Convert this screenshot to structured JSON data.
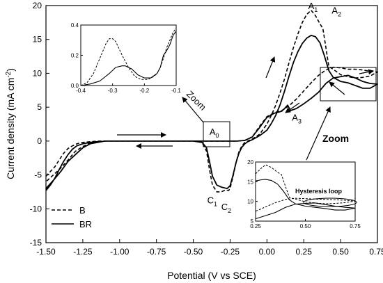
{
  "chart_data": [
    {
      "id": "main",
      "type": "line",
      "xlabel": "Potential (V vs SCE)",
      "ylabel_base": "Current density (mA cm",
      "ylabel_sup": "-2",
      "ylabel_end": ")",
      "xlim": [
        -1.5,
        0.75
      ],
      "ylim": [
        -15,
        20
      ],
      "x_ticks": [
        -1.5,
        -1.25,
        -1.0,
        -0.75,
        -0.5,
        -0.25,
        0.0,
        0.25,
        0.5,
        0.75
      ],
      "x_tick_labels": [
        "-1.50",
        "-1.25",
        "-1.00",
        "-0.75",
        "-0.50",
        "-0.25",
        "0.00",
        "0.25",
        "0.50",
        "0.75"
      ],
      "y_ticks": [
        -15,
        -10,
        -5,
        0,
        5,
        10,
        15,
        20
      ],
      "y_tick_labels": [
        "-15",
        "-10",
        "-5",
        "0",
        "5",
        "10",
        "15",
        "20"
      ],
      "grid": false,
      "legend_position": "bottom-left",
      "series": [
        {
          "name": "B",
          "style": "dashed",
          "x": [
            -1.5,
            -1.47,
            -1.44,
            -1.41,
            -1.38,
            -1.35,
            -1.32,
            -1.29,
            -1.25,
            -1.2,
            -1.15,
            -1.1,
            -1.0,
            -0.9,
            -0.8,
            -0.7,
            -0.6,
            -0.5,
            -0.44,
            -0.41,
            -0.39,
            -0.37,
            -0.34,
            -0.31,
            -0.28,
            -0.26,
            -0.25,
            -0.23,
            -0.21,
            -0.19,
            -0.17,
            -0.15,
            -0.13,
            -0.1,
            -0.05,
            0.0,
            0.03,
            0.06,
            0.09,
            0.12,
            0.15,
            0.18,
            0.21,
            0.24,
            0.27,
            0.3,
            0.33,
            0.36,
            0.38,
            0.4,
            0.42,
            0.45,
            0.5,
            0.55,
            0.6,
            0.65,
            0.7,
            0.75,
            0.7,
            0.65,
            0.6,
            0.55,
            0.5,
            0.45,
            0.4,
            0.35,
            0.3,
            0.25,
            0.2,
            0.15,
            0.1,
            0.05,
            0.0,
            -0.05,
            -0.1,
            -0.15,
            -0.2,
            -0.3,
            -0.4,
            -0.5,
            -0.7,
            -0.9,
            -1.1,
            -1.2,
            -1.25,
            -1.3,
            -1.35,
            -1.4,
            -1.45,
            -1.5
          ],
          "y": [
            -5.2,
            -4.5,
            -3.8,
            -2.8,
            -1.8,
            -1.1,
            -0.7,
            -0.4,
            -0.2,
            -0.1,
            0.0,
            0.0,
            0.0,
            0.0,
            0.0,
            0.0,
            0.0,
            0.0,
            -0.2,
            -1.5,
            -4.2,
            -6.5,
            -7.5,
            -7.5,
            -7.2,
            -7.3,
            -7.0,
            -5.2,
            -3.2,
            -1.6,
            -0.7,
            -0.2,
            0.0,
            0.3,
            1.0,
            2.5,
            3.8,
            5.3,
            7.2,
            9.2,
            11.6,
            13.8,
            15.8,
            17.5,
            18.7,
            19.3,
            18.5,
            17.3,
            16.6,
            13.8,
            11.0,
            10.6,
            9.8,
            9.5,
            9.3,
            9.4,
            9.6,
            10.2,
            10.3,
            10.5,
            10.6,
            10.6,
            10.8,
            10.9,
            10.5,
            9.7,
            8.6,
            7.4,
            6.2,
            5.2,
            4.5,
            4.2,
            3.6,
            2.2,
            0.6,
            0.1,
            0.0,
            0.0,
            0.0,
            0.0,
            0.0,
            0.0,
            0.0,
            -0.3,
            -0.8,
            -1.5,
            -2.8,
            -4.0,
            -5.0,
            -6.0
          ]
        },
        {
          "name": "BR",
          "style": "solid",
          "x": [
            -1.5,
            -1.47,
            -1.44,
            -1.41,
            -1.38,
            -1.35,
            -1.32,
            -1.29,
            -1.25,
            -1.2,
            -1.15,
            -1.1,
            -1.0,
            -0.9,
            -0.8,
            -0.7,
            -0.6,
            -0.5,
            -0.44,
            -0.41,
            -0.39,
            -0.37,
            -0.34,
            -0.31,
            -0.29,
            -0.27,
            -0.25,
            -0.23,
            -0.21,
            -0.19,
            -0.17,
            -0.15,
            -0.13,
            -0.1,
            -0.05,
            0.0,
            0.03,
            0.06,
            0.09,
            0.12,
            0.15,
            0.18,
            0.21,
            0.24,
            0.27,
            0.3,
            0.33,
            0.36,
            0.39,
            0.42,
            0.45,
            0.5,
            0.55,
            0.6,
            0.65,
            0.7,
            0.75,
            0.7,
            0.65,
            0.6,
            0.55,
            0.5,
            0.45,
            0.4,
            0.35,
            0.3,
            0.25,
            0.2,
            0.16,
            0.14,
            0.12,
            0.1,
            0.05,
            0.0,
            -0.05,
            -0.1,
            -0.15,
            -0.2,
            -0.3,
            -0.4,
            -0.5,
            -0.7,
            -0.9,
            -1.1,
            -1.2,
            -1.25,
            -1.3,
            -1.35,
            -1.4,
            -1.45,
            -1.5
          ],
          "y": [
            -7.3,
            -6.5,
            -5.5,
            -4.2,
            -3.0,
            -2.0,
            -1.2,
            -0.7,
            -0.4,
            -0.2,
            -0.1,
            0.0,
            0.0,
            0.0,
            0.0,
            0.0,
            0.0,
            0.0,
            -0.2,
            -1.0,
            -3.0,
            -5.2,
            -6.5,
            -6.8,
            -6.9,
            -7.0,
            -6.6,
            -5.0,
            -3.2,
            -1.8,
            -0.9,
            -0.4,
            -0.1,
            0.2,
            0.8,
            1.6,
            2.6,
            3.8,
            5.4,
            7.4,
            9.6,
            11.6,
            13.2,
            14.4,
            15.2,
            15.6,
            15.4,
            14.5,
            12.6,
            10.4,
            9.4,
            8.8,
            8.6,
            8.2,
            7.8,
            7.8,
            8.4,
            8.5,
            8.8,
            9.3,
            9.7,
            9.5,
            9.3,
            8.5,
            7.2,
            6.3,
            5.5,
            4.8,
            4.5,
            5.3,
            4.8,
            4.4,
            4.1,
            3.5,
            2.0,
            0.6,
            0.1,
            0.0,
            0.0,
            0.0,
            0.0,
            0.0,
            0.0,
            0.0,
            -0.4,
            -1.0,
            -2.0,
            -3.0,
            -4.5,
            -5.8,
            -7.0
          ]
        }
      ],
      "annotations": [
        {
          "main": "A",
          "sub": "1",
          "x": 0.28,
          "y": 19.5
        },
        {
          "main": "A",
          "sub": "2",
          "x": 0.44,
          "y": 18.8
        },
        {
          "main": "A",
          "sub": "3",
          "x": 0.17,
          "y": 3.0
        },
        {
          "main": "A",
          "sub": "0",
          "x": -0.39,
          "y": 0.9
        },
        {
          "main": "C",
          "sub": "1",
          "x": -0.405,
          "y": -9.2
        },
        {
          "main": "C",
          "sub": "2",
          "x": -0.31,
          "y": -10.2
        }
      ],
      "legend": [
        {
          "name": "B",
          "style": "dashed"
        },
        {
          "name": "BR",
          "style": "solid"
        }
      ],
      "zoom_label": "Zoom",
      "zoom_label_2": "Zoom"
    },
    {
      "id": "inset-top",
      "type": "line",
      "xlim": [
        -0.4,
        -0.1
      ],
      "ylim": [
        0.0,
        0.4
      ],
      "x_ticks": [
        -0.4,
        -0.3,
        -0.2,
        -0.1
      ],
      "x_tick_labels": [
        "-0.4",
        "-0.3",
        "-0.2",
        "-0.1"
      ],
      "y_ticks": [
        0.0,
        0.2,
        0.4
      ],
      "y_tick_labels": [
        "0.0",
        "0.2",
        "0.4"
      ],
      "series": [
        {
          "name": "B",
          "style": "dashed",
          "x": [
            -0.4,
            -0.38,
            -0.36,
            -0.34,
            -0.32,
            -0.31,
            -0.3,
            -0.29,
            -0.27,
            -0.25,
            -0.23,
            -0.21,
            -0.19,
            -0.17,
            -0.16,
            -0.15,
            -0.14,
            -0.13,
            -0.12,
            -0.11,
            -0.1
          ],
          "y": [
            0.0,
            0.02,
            0.08,
            0.18,
            0.28,
            0.31,
            0.31,
            0.29,
            0.2,
            0.12,
            0.06,
            0.04,
            0.04,
            0.06,
            0.08,
            0.12,
            0.18,
            0.25,
            0.3,
            0.35,
            0.38
          ]
        },
        {
          "name": "BR",
          "style": "solid",
          "x": [
            -0.4,
            -0.37,
            -0.34,
            -0.31,
            -0.29,
            -0.27,
            -0.26,
            -0.24,
            -0.22,
            -0.2,
            -0.18,
            -0.16,
            -0.15,
            -0.14,
            -0.13,
            -0.12,
            -0.11,
            -0.1
          ],
          "y": [
            0.0,
            0.01,
            0.03,
            0.08,
            0.12,
            0.13,
            0.13,
            0.11,
            0.07,
            0.05,
            0.05,
            0.08,
            0.12,
            0.2,
            0.23,
            0.27,
            0.33,
            0.36
          ]
        }
      ]
    },
    {
      "id": "inset-bottom",
      "type": "line",
      "xlim": [
        0.25,
        0.75
      ],
      "ylim": [
        5,
        20
      ],
      "x_ticks": [
        0.25,
        0.5,
        0.75
      ],
      "x_tick_labels": [
        "0.25",
        "0.50",
        "0.75"
      ],
      "y_ticks": [
        5,
        10,
        15,
        20
      ],
      "y_tick_labels": [
        "5",
        "10",
        "15",
        "20"
      ],
      "hysteresis_label": "Hysteresis loop",
      "series": [
        {
          "name": "B",
          "style": "dashed",
          "x": [
            0.25,
            0.28,
            0.3,
            0.33,
            0.36,
            0.38,
            0.4,
            0.42,
            0.45,
            0.5,
            0.55,
            0.6,
            0.65,
            0.7,
            0.75,
            0.7,
            0.65,
            0.6,
            0.55,
            0.5,
            0.45,
            0.4,
            0.35,
            0.3,
            0.25
          ],
          "y": [
            17.0,
            18.5,
            19.3,
            18.6,
            17.4,
            16.8,
            13.8,
            11.0,
            10.6,
            9.9,
            9.6,
            9.4,
            9.5,
            9.7,
            10.1,
            10.3,
            10.4,
            10.5,
            10.6,
            10.7,
            10.8,
            10.5,
            9.7,
            8.6,
            7.5
          ]
        },
        {
          "name": "BR",
          "style": "solid",
          "x": [
            0.25,
            0.28,
            0.3,
            0.33,
            0.36,
            0.39,
            0.42,
            0.45,
            0.5,
            0.55,
            0.6,
            0.65,
            0.7,
            0.75,
            0.7,
            0.65,
            0.6,
            0.55,
            0.5,
            0.45,
            0.4,
            0.35,
            0.3,
            0.25
          ],
          "y": [
            15.2,
            15.5,
            15.6,
            15.3,
            14.4,
            12.6,
            10.4,
            9.4,
            8.8,
            8.5,
            8.2,
            7.8,
            7.8,
            8.3,
            8.5,
            8.8,
            9.2,
            9.6,
            9.5,
            9.3,
            8.5,
            7.2,
            6.4,
            5.6
          ]
        }
      ]
    }
  ]
}
